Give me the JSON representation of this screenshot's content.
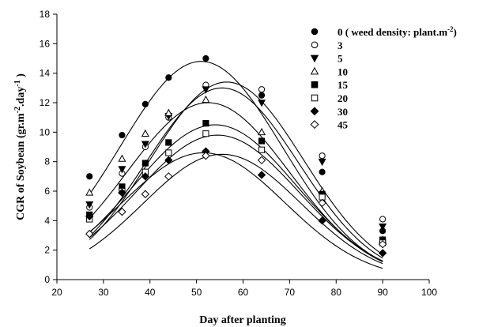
{
  "chart_data": {
    "type": "scatter",
    "xlabel": "Day after planting",
    "ylabel_parts": [
      "CGR of Soybean (gr.m",
      "-2",
      ".day",
      "-1",
      " )"
    ],
    "xlim": [
      20,
      100
    ],
    "ylim": [
      0,
      18
    ],
    "x_ticks": [
      "20",
      "30",
      "40",
      "50",
      "60",
      "70",
      "80",
      "90",
      "100"
    ],
    "y_ticks": [
      "0",
      "2",
      "4",
      "6",
      "8",
      "10",
      "12",
      "14",
      "16",
      "18"
    ],
    "x": [
      27,
      34,
      39,
      44,
      52,
      64,
      77,
      90
    ],
    "legend_position": "top-right",
    "legend_first_suffix": [
      " ( weed density: plant.m",
      "-2",
      ")"
    ],
    "series": [
      {
        "name": "0",
        "marker": "circle-filled",
        "values": [
          7.0,
          9.8,
          11.9,
          13.7,
          15.0,
          12.5,
          7.3,
          3.3
        ],
        "curve": {
          "peak": 14.8,
          "mu": 51,
          "sigma": 17.5
        }
      },
      {
        "name": "3",
        "marker": "circle-open",
        "values": [
          4.9,
          7.2,
          9.0,
          11.0,
          13.2,
          12.9,
          8.4,
          4.1
        ],
        "curve": {
          "peak": 13.4,
          "mu": 56.5,
          "sigma": 16.5
        }
      },
      {
        "name": "5",
        "marker": "triangle-down-filled",
        "values": [
          5.1,
          7.5,
          9.2,
          11.1,
          12.9,
          12.0,
          8.0,
          3.6
        ],
        "curve": {
          "peak": 13.0,
          "mu": 55.5,
          "sigma": 16.5
        }
      },
      {
        "name": "10",
        "marker": "triangle-up-open",
        "values": [
          5.9,
          8.2,
          9.9,
          11.3,
          12.2,
          10.0,
          6.0,
          2.7
        ],
        "curve": {
          "peak": 12.0,
          "mu": 52.5,
          "sigma": 17.5
        }
      },
      {
        "name": "15",
        "marker": "square-filled",
        "values": [
          4.4,
          6.3,
          7.9,
          9.3,
          10.6,
          9.4,
          5.8,
          2.7
        ],
        "curve": {
          "peak": 10.5,
          "mu": 54,
          "sigma": 17.5
        }
      },
      {
        "name": "20",
        "marker": "square-open",
        "values": [
          4.1,
          6.0,
          7.3,
          8.6,
          9.9,
          8.8,
          5.6,
          2.5
        ],
        "curve": {
          "peak": 9.8,
          "mu": 54.5,
          "sigma": 17.5
        }
      },
      {
        "name": "30",
        "marker": "diamond-filled",
        "values": [
          4.3,
          5.9,
          7.0,
          8.1,
          8.7,
          7.1,
          4.0,
          1.8
        ],
        "curve": {
          "peak": 8.6,
          "mu": 51.5,
          "sigma": 17.5
        }
      },
      {
        "name": "45",
        "marker": "diamond-open",
        "values": [
          3.1,
          4.6,
          5.8,
          7.0,
          8.4,
          8.1,
          5.2,
          2.4
        ],
        "curve": {
          "peak": 8.5,
          "mu": 55.5,
          "sigma": 17
        }
      }
    ]
  }
}
